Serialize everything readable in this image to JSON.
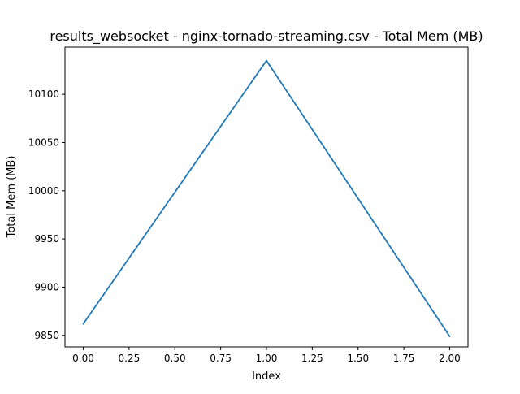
{
  "chart_data": {
    "type": "line",
    "title": "results_websocket - nginx-tornado-streaming.csv - Total Mem (MB)",
    "xlabel": "Index",
    "ylabel": "Total Mem (MB)",
    "x": [
      0,
      1,
      2
    ],
    "series": [
      {
        "values": [
          9862,
          10135,
          9849
        ],
        "color": "#1f77b4"
      }
    ],
    "xlim": [
      -0.1,
      2.1
    ],
    "ylim": [
      9838,
      10149
    ],
    "xticks": [
      0.0,
      0.25,
      0.5,
      0.75,
      1.0,
      1.25,
      1.5,
      1.75,
      2.0
    ],
    "xtick_labels": [
      "0.00",
      "0.25",
      "0.50",
      "0.75",
      "1.00",
      "1.25",
      "1.50",
      "1.75",
      "2.00"
    ],
    "yticks": [
      9850,
      9900,
      9950,
      10000,
      10050,
      10100
    ],
    "ytick_labels": [
      "9850",
      "9900",
      "9950",
      "10000",
      "10050",
      "10100"
    ],
    "grid": false,
    "legend": false
  }
}
